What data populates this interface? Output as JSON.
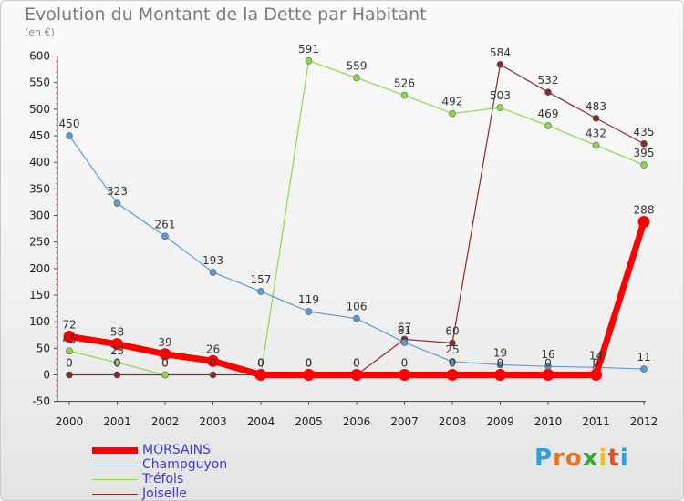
{
  "title": "Evolution du Montant de la Dette par Habitant",
  "subtitle": "(en €)",
  "brand": {
    "letters": [
      "P",
      "r",
      "o",
      "x",
      "i",
      "t",
      "i"
    ],
    "colors": [
      "#2f9fd8",
      "#e8731f",
      "#e8731f",
      "#3aa53a",
      "#e8c31f",
      "#e84c1f",
      "#2f9fd8"
    ]
  },
  "chart_data": {
    "type": "line",
    "x": [
      "2000",
      "2001",
      "2002",
      "2003",
      "2004",
      "2005",
      "2006",
      "2007",
      "2008",
      "2009",
      "2010",
      "2011",
      "2012"
    ],
    "ylim": [
      -50,
      600
    ],
    "yticks": [
      "-50",
      "0",
      "50",
      "100",
      "150",
      "200",
      "250",
      "300",
      "350",
      "400",
      "450",
      "500",
      "550",
      "600"
    ],
    "grid": false,
    "legend_position": "bottom-left",
    "series": [
      {
        "name": "MORSAINS",
        "color": "#ff0000",
        "values": [
          72,
          58,
          39,
          26,
          0,
          0,
          0,
          0,
          0,
          0,
          0,
          0,
          288
        ],
        "labels": [
          "72",
          "58",
          "39",
          "26",
          "0",
          "0",
          "0",
          "0",
          "0",
          "0",
          "0",
          "0",
          "288"
        ]
      },
      {
        "name": "Champguyon",
        "color": "#5b9bd5",
        "values": [
          450,
          323,
          261,
          193,
          157,
          119,
          106,
          61,
          25,
          19,
          16,
          14,
          11
        ],
        "labels": [
          "450",
          "323",
          "261",
          "193",
          "157",
          "119",
          "106",
          "61",
          "25",
          "19",
          "16",
          "14",
          "11"
        ]
      },
      {
        "name": "Tréfols",
        "color": "#8fd64f",
        "values": [
          45,
          23,
          0,
          null,
          0,
          591,
          559,
          526,
          492,
          503,
          469,
          432,
          395
        ],
        "labels": [
          "45",
          "23",
          "0",
          "",
          "0",
          "591",
          "559",
          "526",
          "492",
          "503",
          "469",
          "432",
          "395"
        ]
      },
      {
        "name": "Joiselle",
        "color": "#8b2a2a",
        "values": [
          0,
          0,
          0,
          0,
          0,
          0,
          0,
          67,
          60,
          584,
          532,
          483,
          435
        ],
        "labels": [
          "0",
          "0",
          "0",
          "0",
          "0",
          "0",
          "0",
          "67",
          "60",
          "584",
          "532",
          "483",
          "435"
        ]
      }
    ]
  }
}
